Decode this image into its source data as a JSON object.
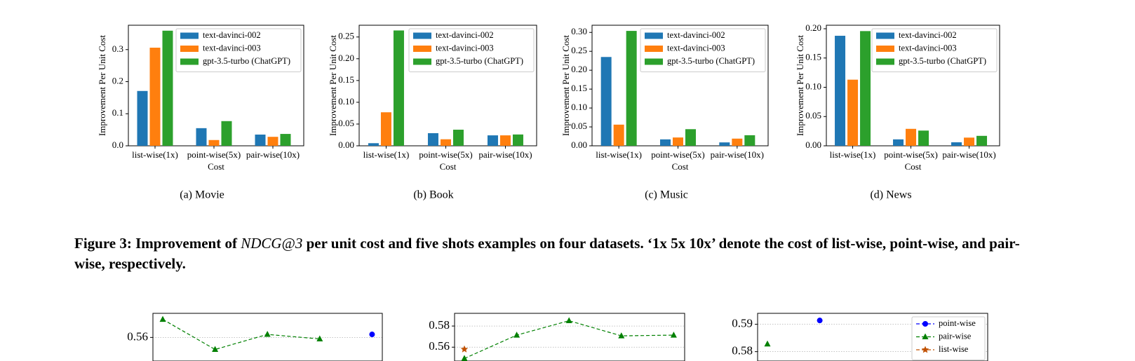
{
  "chart_data": [
    {
      "type": "bar",
      "caption": "(a) Movie",
      "xlabel": "Cost",
      "ylabel": "Improvement Per Unit Cost",
      "categories": [
        "list-wise(1x)",
        "point-wise(5x)",
        "pair-wise(10x)"
      ],
      "series": [
        {
          "name": "text-davinci-002",
          "color": "#1f77b4",
          "values": [
            0.171,
            0.055,
            0.035
          ]
        },
        {
          "name": "text-davinci-003",
          "color": "#ff7f0e",
          "values": [
            0.306,
            0.018,
            0.028
          ]
        },
        {
          "name": "gpt-3.5-turbo (ChatGPT)",
          "color": "#2ca02c",
          "values": [
            0.359,
            0.077,
            0.037
          ]
        }
      ],
      "ylim": [
        0,
        0.376
      ],
      "yticks": [
        {
          "value": 0,
          "label": "0.0"
        },
        0.1,
        0.2,
        0.3
      ],
      "grid": false,
      "legend": "upper right"
    },
    {
      "type": "bar",
      "caption": "(b) Book",
      "xlabel": "Cost",
      "ylabel": "Improvement Per Unit Cost",
      "categories": [
        "list-wise(1x)",
        "point-wise(5x)",
        "pair-wise(10x)"
      ],
      "series": [
        {
          "name": "text-davinci-002",
          "color": "#1f77b4",
          "values": [
            0.006,
            0.029,
            0.024
          ]
        },
        {
          "name": "text-davinci-003",
          "color": "#ff7f0e",
          "values": [
            0.077,
            0.015,
            0.024
          ]
        },
        {
          "name": "gpt-3.5-turbo (ChatGPT)",
          "color": "#2ca02c",
          "values": [
            0.265,
            0.037,
            0.026
          ]
        }
      ],
      "ylim": [
        0,
        0.277
      ],
      "yticks": [
        {
          "value": 0,
          "label": "0.00"
        },
        0.05,
        {
          "value": 0.1,
          "label": "0.10"
        },
        0.15,
        {
          "value": 0.2,
          "label": "0.20"
        },
        0.25
      ],
      "grid": false,
      "legend": "upper right"
    },
    {
      "type": "bar",
      "caption": "(c) Music",
      "xlabel": "Cost",
      "ylabel": "Improvement Per Unit Cost",
      "categories": [
        "list-wise(1x)",
        "point-wise(5x)",
        "pair-wise(10x)"
      ],
      "series": [
        {
          "name": "text-davinci-002",
          "color": "#1f77b4",
          "values": [
            0.235,
            0.017,
            0.009
          ]
        },
        {
          "name": "text-davinci-003",
          "color": "#ff7f0e",
          "values": [
            0.056,
            0.022,
            0.019
          ]
        },
        {
          "name": "gpt-3.5-turbo (ChatGPT)",
          "color": "#2ca02c",
          "values": [
            0.304,
            0.044,
            0.028
          ]
        }
      ],
      "ylim": [
        0,
        0.319
      ],
      "yticks": [
        {
          "value": 0,
          "label": "0.00"
        },
        0.05,
        {
          "value": 0.1,
          "label": "0.10"
        },
        0.15,
        {
          "value": 0.2,
          "label": "0.20"
        },
        0.25,
        {
          "value": 0.3,
          "label": "0.30"
        }
      ],
      "grid": false,
      "legend": "upper right"
    },
    {
      "type": "bar",
      "caption": "(d) News",
      "xlabel": "Cost",
      "ylabel": "Improvement Per Unit Cost",
      "categories": [
        "list-wise(1x)",
        "point-wise(5x)",
        "pair-wise(10x)"
      ],
      "series": [
        {
          "name": "text-davinci-002",
          "color": "#1f77b4",
          "values": [
            0.188,
            0.011,
            0.006
          ]
        },
        {
          "name": "text-davinci-003",
          "color": "#ff7f0e",
          "values": [
            0.113,
            0.029,
            0.014
          ]
        },
        {
          "name": "gpt-3.5-turbo (ChatGPT)",
          "color": "#2ca02c",
          "values": [
            0.196,
            0.026,
            0.017
          ]
        }
      ],
      "ylim": [
        0,
        0.206
      ],
      "yticks": [
        {
          "value": 0,
          "label": "0.00"
        },
        0.05,
        {
          "value": 0.1,
          "label": "0.10"
        },
        0.15,
        {
          "value": 0.2,
          "label": "0.20"
        }
      ],
      "grid": false,
      "legend": "upper right"
    },
    {
      "type": "line",
      "categories": [
        null,
        null,
        null,
        null,
        null
      ],
      "series": [
        {
          "color": "#0000ff",
          "marker": "circle",
          "values": [
            null,
            null,
            null,
            null,
            0.561
          ]
        },
        {
          "color": "#008000",
          "marker": "triangle",
          "values": [
            0.566,
            0.556,
            0.561,
            0.5595,
            null
          ]
        }
      ],
      "ylim": [
        0.551,
        0.568
      ],
      "yticks": [
        0.56
      ],
      "grid": true
    },
    {
      "type": "line",
      "categories": [
        null,
        null,
        null,
        null,
        null
      ],
      "series": [
        {
          "color": "#008000",
          "marker": "triangle",
          "values": [
            0.5493,
            0.5714,
            0.585,
            0.5707,
            0.5714
          ]
        },
        {
          "color": "#c05000",
          "marker": "star",
          "values": [
            0.558,
            null,
            null,
            null,
            null
          ]
        }
      ],
      "ylim": [
        0.5436,
        0.592
      ],
      "yticks": [
        0.56,
        0.58
      ],
      "grid": true
    },
    {
      "type": "line",
      "categories": [
        null,
        null,
        null,
        null,
        null
      ],
      "series": [
        {
          "name": "point-wise",
          "color": "#0000ff",
          "marker": "circle",
          "values": [
            null,
            0.5914,
            null,
            null,
            null
          ]
        },
        {
          "name": "pair-wise",
          "color": "#008000",
          "marker": "triangle",
          "values": [
            0.5828,
            null,
            null,
            null,
            null
          ]
        },
        {
          "name": "list-wise",
          "color": "#c05000",
          "marker": "star",
          "values": [
            null,
            null,
            null,
            null,
            null
          ]
        }
      ],
      "ylim": [
        0.5753,
        0.594
      ],
      "yticks": [
        0.58,
        0.59
      ],
      "grid": true,
      "legend": "upper right"
    }
  ],
  "figure_caption": [
    "Figure 3: Improvement of ",
    "NDCG@3",
    " per unit cost and five shots examples on four datasets. ‘1x 5x 10x’ denote the cost of list-wise, point-wise, and pair-wise, respectively."
  ]
}
